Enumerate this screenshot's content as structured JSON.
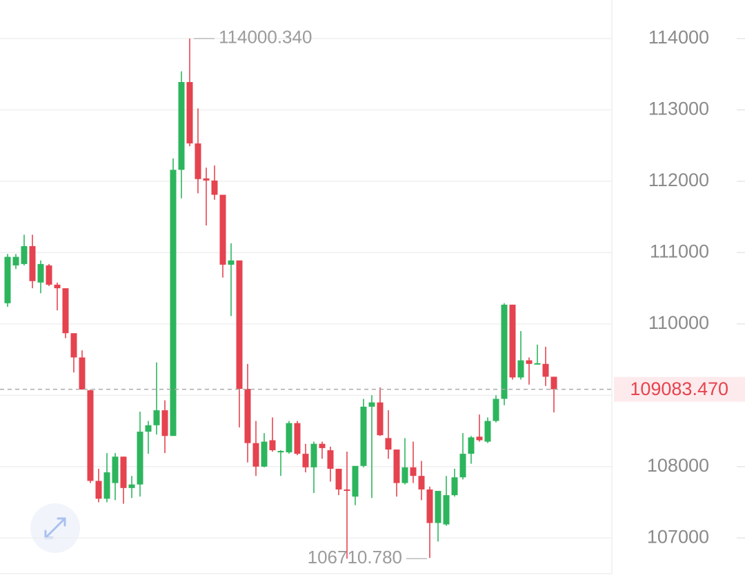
{
  "chart_data": {
    "type": "candlestick",
    "up_color": "#2db55d",
    "down_color": "#e5434f",
    "open": [
      110290,
      110820,
      110840,
      111090,
      110580,
      110820,
      110550,
      110500,
      109870,
      109530,
      109070,
      107800,
      107550,
      107770,
      108140,
      107700,
      107750,
      108490,
      108580,
      108790,
      108430,
      112160,
      113390,
      112530,
      112040,
      112010,
      111810,
      110830,
      110890,
      109090,
      108330,
      108000,
      108370,
      108200,
      108200,
      108610,
      108180,
      107990,
      108320,
      108230,
      107970,
      107680,
      107580,
      108010,
      108840,
      108900,
      108400,
      108240,
      107770,
      107990,
      107870,
      107680,
      107210,
      107190,
      107600,
      107850,
      108180,
      108420,
      108350,
      108640,
      108950,
      110270,
      109250,
      109490,
      109430,
      109440,
      109260
    ],
    "high": [
      110980,
      110980,
      111250,
      111250,
      110890,
      110840,
      110580,
      110500,
      109870,
      109630,
      109080,
      107970,
      108190,
      108190,
      108140,
      107870,
      108770,
      108640,
      109460,
      108930,
      112320,
      113540,
      114000.34,
      113020,
      112190,
      112220,
      111810,
      111130,
      110890,
      109440,
      108640,
      108470,
      108690,
      108230,
      108640,
      108640,
      108320,
      108350,
      108350,
      108280,
      107970,
      108210,
      108010,
      108950,
      109000,
      109110,
      108790,
      108240,
      108400,
      108350,
      108080,
      107720,
      107660,
      107870,
      107970,
      108470,
      108430,
      108730,
      108690,
      109000,
      110290,
      110270,
      109900,
      109530,
      109710,
      109680,
      109260
    ],
    "low": [
      110240,
      110770,
      110820,
      110500,
      110430,
      110530,
      110190,
      109800,
      109320,
      109080,
      107770,
      107500,
      107500,
      107530,
      107480,
      107560,
      107580,
      108180,
      108450,
      108190,
      108430,
      111760,
      112490,
      111830,
      111380,
      111740,
      110650,
      110110,
      108550,
      108060,
      107870,
      107990,
      108210,
      107870,
      108180,
      108160,
      107920,
      107630,
      108110,
      107790,
      107600,
      106710.78,
      107460,
      107990,
      107560,
      108430,
      108110,
      107580,
      107750,
      107770,
      107530,
      106720,
      106950,
      107170,
      107580,
      107820,
      108040,
      108350,
      108330,
      108620,
      108860,
      109220,
      109220,
      109150,
      109430,
      109130,
      108760
    ],
    "close": [
      110940,
      110940,
      111090,
      110600,
      110840,
      110550,
      110500,
      109870,
      109530,
      109080,
      107800,
      107550,
      107920,
      108140,
      107700,
      107750,
      108490,
      108580,
      108790,
      108430,
      112160,
      113390,
      112530,
      112030,
      112010,
      111810,
      110830,
      110890,
      109090,
      108330,
      108000,
      108350,
      108230,
      108220,
      108610,
      108180,
      107990,
      108320,
      108260,
      107970,
      107680,
      107660,
      108010,
      108840,
      108900,
      108440,
      108240,
      107770,
      107990,
      107870,
      107680,
      107210,
      107660,
      107600,
      107850,
      108180,
      108410,
      108370,
      108640,
      108950,
      110270,
      109250,
      109490,
      109440,
      109450,
      109260,
      109083.47
    ],
    "ylim": [
      106500,
      114540
    ],
    "yticks": [
      107000,
      108000,
      109000,
      110000,
      111000,
      112000,
      113000,
      114000
    ],
    "grid": true,
    "high_label": "114000.340",
    "low_label": "106710.780",
    "last_price": {
      "value": 109083.47,
      "label": "109083.470"
    }
  }
}
